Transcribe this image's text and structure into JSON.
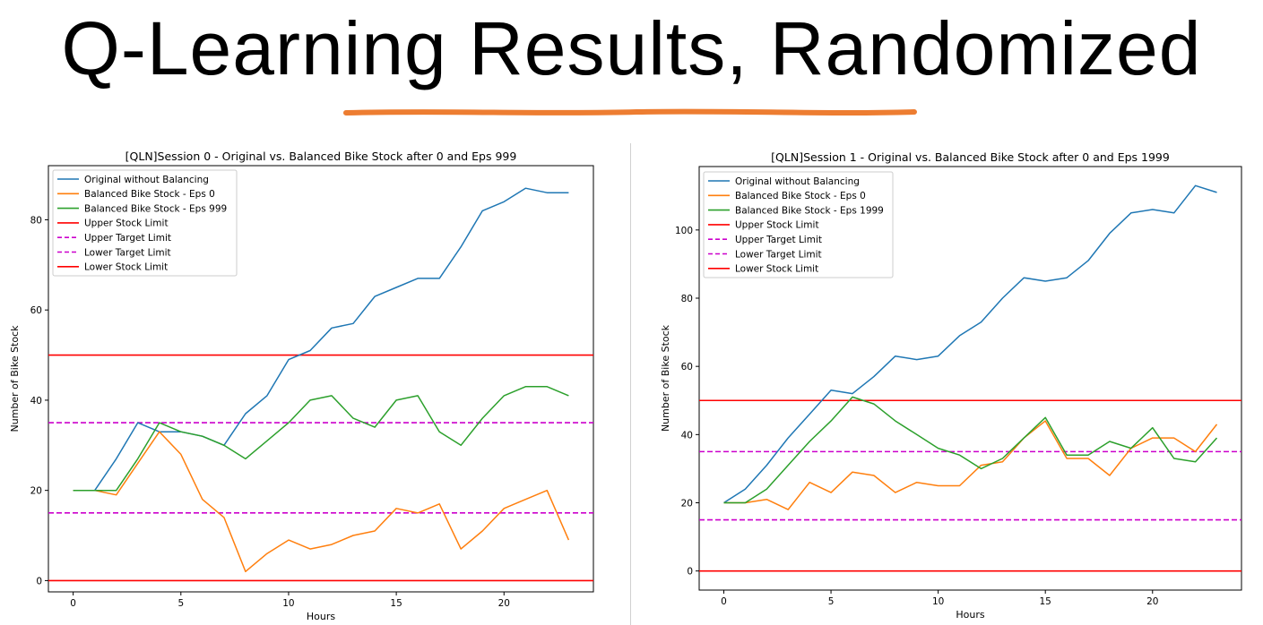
{
  "slide": {
    "title": "Q-Learning Results, Randomized",
    "accent_color": "#ED7D31"
  },
  "chart_data": [
    {
      "type": "line",
      "title": "[QLN]Session 0 - Original vs. Balanced Bike Stock after 0 and Eps 999",
      "xlabel": "Hours",
      "ylabel": "Number of Bike Stock",
      "xlim": [
        -1.15,
        24.15
      ],
      "ylim": [
        -2.5,
        92
      ],
      "xticks": [
        0,
        5,
        10,
        15,
        20
      ],
      "yticks": [
        0,
        20,
        40,
        60,
        80
      ],
      "grid": false,
      "legend_position": "upper-left",
      "x": [
        0,
        1,
        2,
        3,
        4,
        5,
        6,
        7,
        8,
        9,
        10,
        11,
        12,
        13,
        14,
        15,
        16,
        17,
        18,
        19,
        20,
        21,
        22,
        23
      ],
      "series": [
        {
          "name": "Original without Balancing",
          "color": "#1f77b4",
          "style": "solid",
          "values": [
            20,
            20,
            27,
            35,
            33,
            33,
            32,
            30,
            37,
            41,
            49,
            51,
            56,
            57,
            63,
            65,
            67,
            67,
            74,
            82,
            84,
            87,
            86,
            86
          ]
        },
        {
          "name": "Balanced Bike Stock - Eps 0",
          "color": "#ff7f0e",
          "style": "solid",
          "values": [
            20,
            20,
            19,
            26,
            33,
            28,
            18,
            14,
            2,
            6,
            9,
            7,
            8,
            10,
            11,
            16,
            15,
            17,
            7,
            11,
            16,
            18,
            20,
            9
          ]
        },
        {
          "name": "Balanced Bike Stock - Eps 999",
          "color": "#2ca02c",
          "style": "solid",
          "values": [
            20,
            20,
            20,
            27,
            35,
            33,
            32,
            30,
            27,
            31,
            35,
            40,
            41,
            36,
            34,
            40,
            41,
            33,
            30,
            36,
            41,
            43,
            43,
            41
          ]
        }
      ],
      "hlines": [
        {
          "name": "Upper Stock Limit",
          "y": 50,
          "color": "#ff0000",
          "style": "solid"
        },
        {
          "name": "Upper Target Limit",
          "y": 35,
          "color": "#cc00cc",
          "style": "dashed"
        },
        {
          "name": "Lower Target Limit",
          "y": 15,
          "color": "#cc00cc",
          "style": "dashed"
        },
        {
          "name": "Lower Stock Limit",
          "y": 0,
          "color": "#ff0000",
          "style": "solid"
        }
      ]
    },
    {
      "type": "line",
      "title": "[QLN]Session 1 - Original vs. Balanced Bike Stock after 0 and Eps 1999",
      "xlabel": "Hours",
      "ylabel": "Number of Bike Stock",
      "xlim": [
        -1.15,
        24.15
      ],
      "ylim": [
        -5.6,
        118.6
      ],
      "xticks": [
        0,
        5,
        10,
        15,
        20
      ],
      "yticks": [
        0,
        20,
        40,
        60,
        80,
        100
      ],
      "grid": false,
      "legend_position": "upper-left",
      "x": [
        0,
        1,
        2,
        3,
        4,
        5,
        6,
        7,
        8,
        9,
        10,
        11,
        12,
        13,
        14,
        15,
        16,
        17,
        18,
        19,
        20,
        21,
        22,
        23
      ],
      "series": [
        {
          "name": "Original without Balancing",
          "color": "#1f77b4",
          "style": "solid",
          "values": [
            20,
            24,
            31,
            39,
            46,
            53,
            52,
            57,
            63,
            62,
            63,
            69,
            73,
            80,
            86,
            85,
            86,
            91,
            99,
            105,
            106,
            105,
            113,
            111
          ]
        },
        {
          "name": "Balanced Bike Stock - Eps 0",
          "color": "#ff7f0e",
          "style": "solid",
          "values": [
            20,
            20,
            21,
            18,
            26,
            23,
            29,
            28,
            23,
            26,
            25,
            25,
            31,
            32,
            39,
            44,
            33,
            33,
            28,
            36,
            39,
            39,
            35,
            43
          ]
        },
        {
          "name": "Balanced Bike Stock - Eps 1999",
          "color": "#2ca02c",
          "style": "solid",
          "values": [
            20,
            20,
            24,
            31,
            38,
            44,
            51,
            49,
            44,
            40,
            36,
            34,
            30,
            33,
            39,
            45,
            34,
            34,
            38,
            36,
            42,
            33,
            32,
            39
          ]
        }
      ],
      "hlines": [
        {
          "name": "Upper Stock Limit",
          "y": 50,
          "color": "#ff0000",
          "style": "solid"
        },
        {
          "name": "Upper Target Limit",
          "y": 35,
          "color": "#cc00cc",
          "style": "dashed"
        },
        {
          "name": "Lower Target Limit",
          "y": 15,
          "color": "#cc00cc",
          "style": "dashed"
        },
        {
          "name": "Lower Stock Limit",
          "y": 0,
          "color": "#ff0000",
          "style": "solid"
        }
      ]
    }
  ]
}
